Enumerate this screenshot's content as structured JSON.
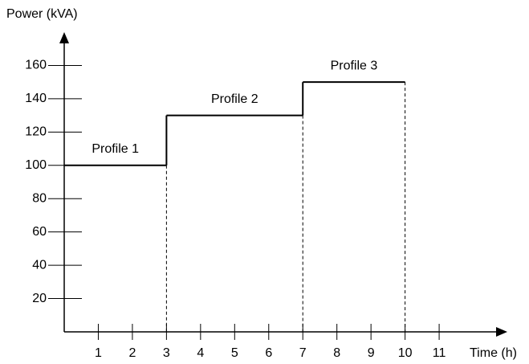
{
  "chart_data": {
    "type": "step",
    "y_label": "Power (kVA)",
    "x_label": "Time (h)",
    "series": [
      {
        "name": "Profile 1",
        "x": [
          0,
          3
        ],
        "values": [
          100,
          100
        ]
      },
      {
        "name": "Profile 2",
        "x": [
          3,
          7
        ],
        "values": [
          130,
          130
        ]
      },
      {
        "name": "Profile 3",
        "x": [
          7,
          10
        ],
        "values": [
          150,
          150
        ]
      }
    ],
    "color": "#000000",
    "xlim": [
      0,
      13
    ],
    "ylim": [
      0,
      180
    ],
    "xticks": [
      1,
      2,
      3,
      4,
      5,
      6,
      7,
      8,
      9,
      10,
      11
    ],
    "yticks": [
      20,
      40,
      60,
      80,
      100,
      120,
      140,
      160
    ]
  }
}
